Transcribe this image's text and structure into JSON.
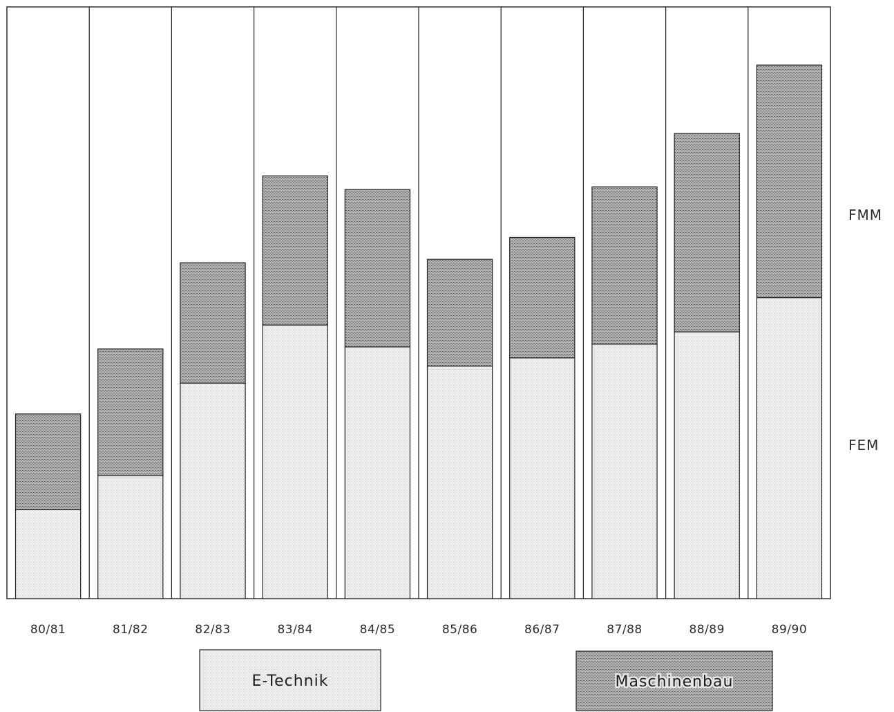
{
  "chart_data": {
    "type": "bar",
    "stacked": true,
    "categories": [
      "80/81",
      "81/82",
      "82/83",
      "83/84",
      "84/85",
      "85/86",
      "86/87",
      "87/88",
      "88/89",
      "89/90"
    ],
    "series": [
      {
        "name": "E-Technik",
        "values": [
          130,
          180,
          315,
          400,
          368,
          340,
          352,
          372,
          390,
          440
        ],
        "color": "#e9e9e9"
      },
      {
        "name": "Maschinenbau",
        "values": [
          140,
          185,
          176,
          218,
          230,
          156,
          176,
          230,
          290,
          340
        ],
        "color": "#9a9a9a"
      }
    ],
    "right_labels": [
      "FMM",
      "FEM"
    ],
    "ylim": [
      0,
      865
    ],
    "grid": false,
    "legend_position": "bottom"
  }
}
